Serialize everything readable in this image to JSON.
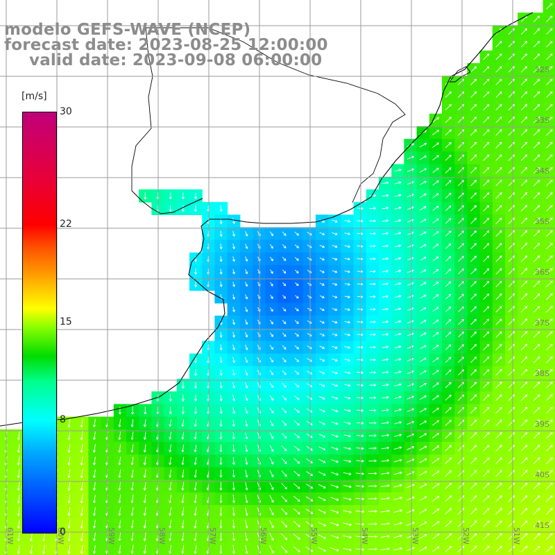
{
  "header": {
    "model": "modelo GEFS-WAVE (NCEP)",
    "forecast_date": "forecast date: 2023-08-25 12:00:00",
    "valid_date": "valid date: 2023-09-08 06:00:00"
  },
  "colorbar": {
    "unit": "[m/s]",
    "min": 0,
    "max": 30,
    "ticks": [
      {
        "value": 30,
        "label": "30"
      },
      {
        "value": 22,
        "label": "22"
      },
      {
        "value": 15,
        "label": "15"
      },
      {
        "value": 8,
        "label": "8"
      },
      {
        "value": 0,
        "label": "0"
      }
    ],
    "colors": [
      "#0000ff",
      "#0050ff",
      "#00a8ff",
      "#00ffff",
      "#00ff8c",
      "#00dc00",
      "#8cff00",
      "#ffff00",
      "#ff9600",
      "#ff5000",
      "#ff0000",
      "#e6003c",
      "#c0007a"
    ]
  },
  "map": {
    "longitude_labels": [
      "61W",
      "60W",
      "59W",
      "58W",
      "57W",
      "56W",
      "55W",
      "54W",
      "53W",
      "52W",
      "51W"
    ],
    "latitude_labels": [
      "32S",
      "33S",
      "34S",
      "35S",
      "36S",
      "37S",
      "38S",
      "39S",
      "40S",
      "41S"
    ],
    "land_color": "#ffffff",
    "coast_color": "#000000",
    "grid_color": "#9a9a9a",
    "arrow_color": "#ffffff"
  }
}
